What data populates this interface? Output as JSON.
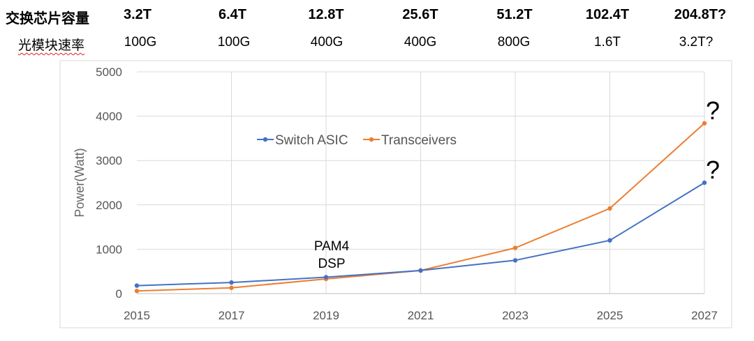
{
  "header_table": {
    "chip_row": {
      "label": "交换芯片容量",
      "values": [
        "3.2T",
        "6.4T",
        "12.8T",
        "25.6T",
        "51.2T",
        "102.4T",
        "204.8T?"
      ]
    },
    "module_row": {
      "label": "光模块速率",
      "values": [
        "100G",
        "100G",
        "400G",
        "400G",
        "800G",
        "1.6T",
        "3.2T?"
      ]
    }
  },
  "chart_data": {
    "type": "line",
    "x": [
      2015,
      2017,
      2019,
      2021,
      2023,
      2025,
      2027
    ],
    "x_tick_labels": [
      "2015",
      "2017",
      "2019",
      "2021",
      "2023",
      "2025",
      "2027"
    ],
    "ylabel": "Power(Watt)",
    "xlabel": "",
    "ylim": [
      0,
      5000
    ],
    "y_ticks": [
      0,
      1000,
      2000,
      3000,
      4000,
      5000
    ],
    "grid": true,
    "legend_position": "upper-center",
    "series": [
      {
        "name": "Switch ASIC",
        "color": "#4472C4",
        "values": [
          180,
          250,
          370,
          520,
          750,
          1200,
          2500
        ]
      },
      {
        "name": "Transceivers",
        "color": "#ED7D31",
        "values": [
          60,
          130,
          330,
          520,
          1030,
          1920,
          3840
        ]
      }
    ],
    "annotations": [
      {
        "lines": [
          "PAM4",
          "DSP"
        ],
        "x": 2019,
        "y": 700
      }
    ],
    "question_marks": [
      {
        "text": "?",
        "series": "Transceivers",
        "x": 2027
      },
      {
        "text": "?",
        "series": "Switch ASIC",
        "x": 2027
      }
    ]
  }
}
